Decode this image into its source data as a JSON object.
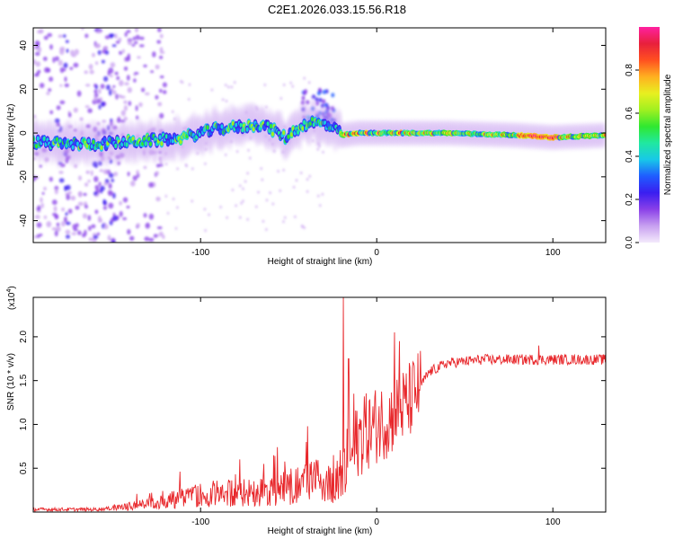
{
  "title": "C2E1.2026.033.15.56.R18",
  "chart_data": [
    {
      "type": "heatmap",
      "title": "C2E1.2026.033.15.56.R18",
      "xlabel": "Height of straight line (km)",
      "ylabel": "Frequency (Hz)",
      "xlim": [
        -195,
        130
      ],
      "ylim": [
        -50,
        48
      ],
      "xticks": [
        -100,
        0,
        100
      ],
      "xtick_labels": [
        "-100",
        "0",
        "100"
      ],
      "yticks": [
        -40,
        -20,
        0,
        20,
        40
      ],
      "ytick_labels": [
        "-40",
        "-20",
        "0",
        "20",
        "40"
      ],
      "ridge": [
        {
          "x": -195,
          "y": -4
        },
        {
          "x": -180,
          "y": -5
        },
        {
          "x": -160,
          "y": -5
        },
        {
          "x": -140,
          "y": -4
        },
        {
          "x": -120,
          "y": -3
        },
        {
          "x": -110,
          "y": -2
        },
        {
          "x": -100,
          "y": 0
        },
        {
          "x": -90,
          "y": 2
        },
        {
          "x": -75,
          "y": 3
        },
        {
          "x": -65,
          "y": 4
        },
        {
          "x": -58,
          "y": 1
        },
        {
          "x": -52,
          "y": -2
        },
        {
          "x": -45,
          "y": 2
        },
        {
          "x": -38,
          "y": 5
        },
        {
          "x": -30,
          "y": 4
        },
        {
          "x": -24,
          "y": 2
        },
        {
          "x": -20,
          "y": -1
        },
        {
          "x": -10,
          "y": 0
        },
        {
          "x": 10,
          "y": 0
        },
        {
          "x": 40,
          "y": 0
        },
        {
          "x": 80,
          "y": -1
        },
        {
          "x": 100,
          "y": -2
        },
        {
          "x": 130,
          "y": -1
        }
      ],
      "colorbar": {
        "label": "Normalized spectral amplitude",
        "range": [
          0,
          1
        ],
        "ticks": [
          0.0,
          0.2,
          0.4,
          0.6,
          0.8
        ],
        "tick_labels": [
          "0.0",
          "0.2",
          "0.4",
          "0.6",
          "0.8"
        ],
        "colors": [
          "#f4eafc",
          "#c8a0f0",
          "#8a40e8",
          "#3a1ef0",
          "#1f5cff",
          "#18c8e8",
          "#20e8a0",
          "#30e830",
          "#a0f020",
          "#e8f020",
          "#ffb020",
          "#ff5020",
          "#e8203c",
          "#ff20a0"
        ]
      }
    },
    {
      "type": "line",
      "xlabel": "Height of straight line (km)",
      "ylabel": "SNR (10 * v/v)",
      "scale_note": "(x10",
      "scale_exp": "4",
      "scale_close": ")",
      "xlim": [
        -195,
        130
      ],
      "ylim": [
        0,
        2.45
      ],
      "xticks": [
        -100,
        0,
        100
      ],
      "xtick_labels": [
        "-100",
        "0",
        "100"
      ],
      "yticks": [
        0.5,
        1.0,
        1.5,
        2.0
      ],
      "ytick_labels": [
        "0.5",
        "1.0",
        "1.5",
        "2.0"
      ],
      "color": "#e8282c",
      "envelope": [
        {
          "x": -195,
          "y": 0.03
        },
        {
          "x": -160,
          "y": 0.03
        },
        {
          "x": -145,
          "y": 0.05
        },
        {
          "x": -130,
          "y": 0.09
        },
        {
          "x": -115,
          "y": 0.13
        },
        {
          "x": -100,
          "y": 0.18
        },
        {
          "x": -85,
          "y": 0.2
        },
        {
          "x": -70,
          "y": 0.2
        },
        {
          "x": -55,
          "y": 0.24
        },
        {
          "x": -45,
          "y": 0.28
        },
        {
          "x": -35,
          "y": 0.32
        },
        {
          "x": -25,
          "y": 0.34
        },
        {
          "x": -18,
          "y": 0.45
        },
        {
          "x": -10,
          "y": 0.85
        },
        {
          "x": 0,
          "y": 1.0
        },
        {
          "x": 10,
          "y": 1.1
        },
        {
          "x": 20,
          "y": 1.3
        },
        {
          "x": 30,
          "y": 1.6
        },
        {
          "x": 40,
          "y": 1.7
        },
        {
          "x": 60,
          "y": 1.74
        },
        {
          "x": 90,
          "y": 1.74
        },
        {
          "x": 110,
          "y": 1.74
        },
        {
          "x": 130,
          "y": 1.74
        }
      ],
      "spikes": [
        {
          "x": -19,
          "y": 2.45
        },
        {
          "x": -16,
          "y": 1.75
        },
        {
          "x": -13,
          "y": 1.35
        },
        {
          "x": -7,
          "y": 1.32
        },
        {
          "x": 10,
          "y": 2.05
        },
        {
          "x": 13,
          "y": 1.95
        },
        {
          "x": 92,
          "y": 1.9
        },
        {
          "x": -40,
          "y": 0.8
        },
        {
          "x": -64,
          "y": 0.55
        }
      ]
    }
  ]
}
